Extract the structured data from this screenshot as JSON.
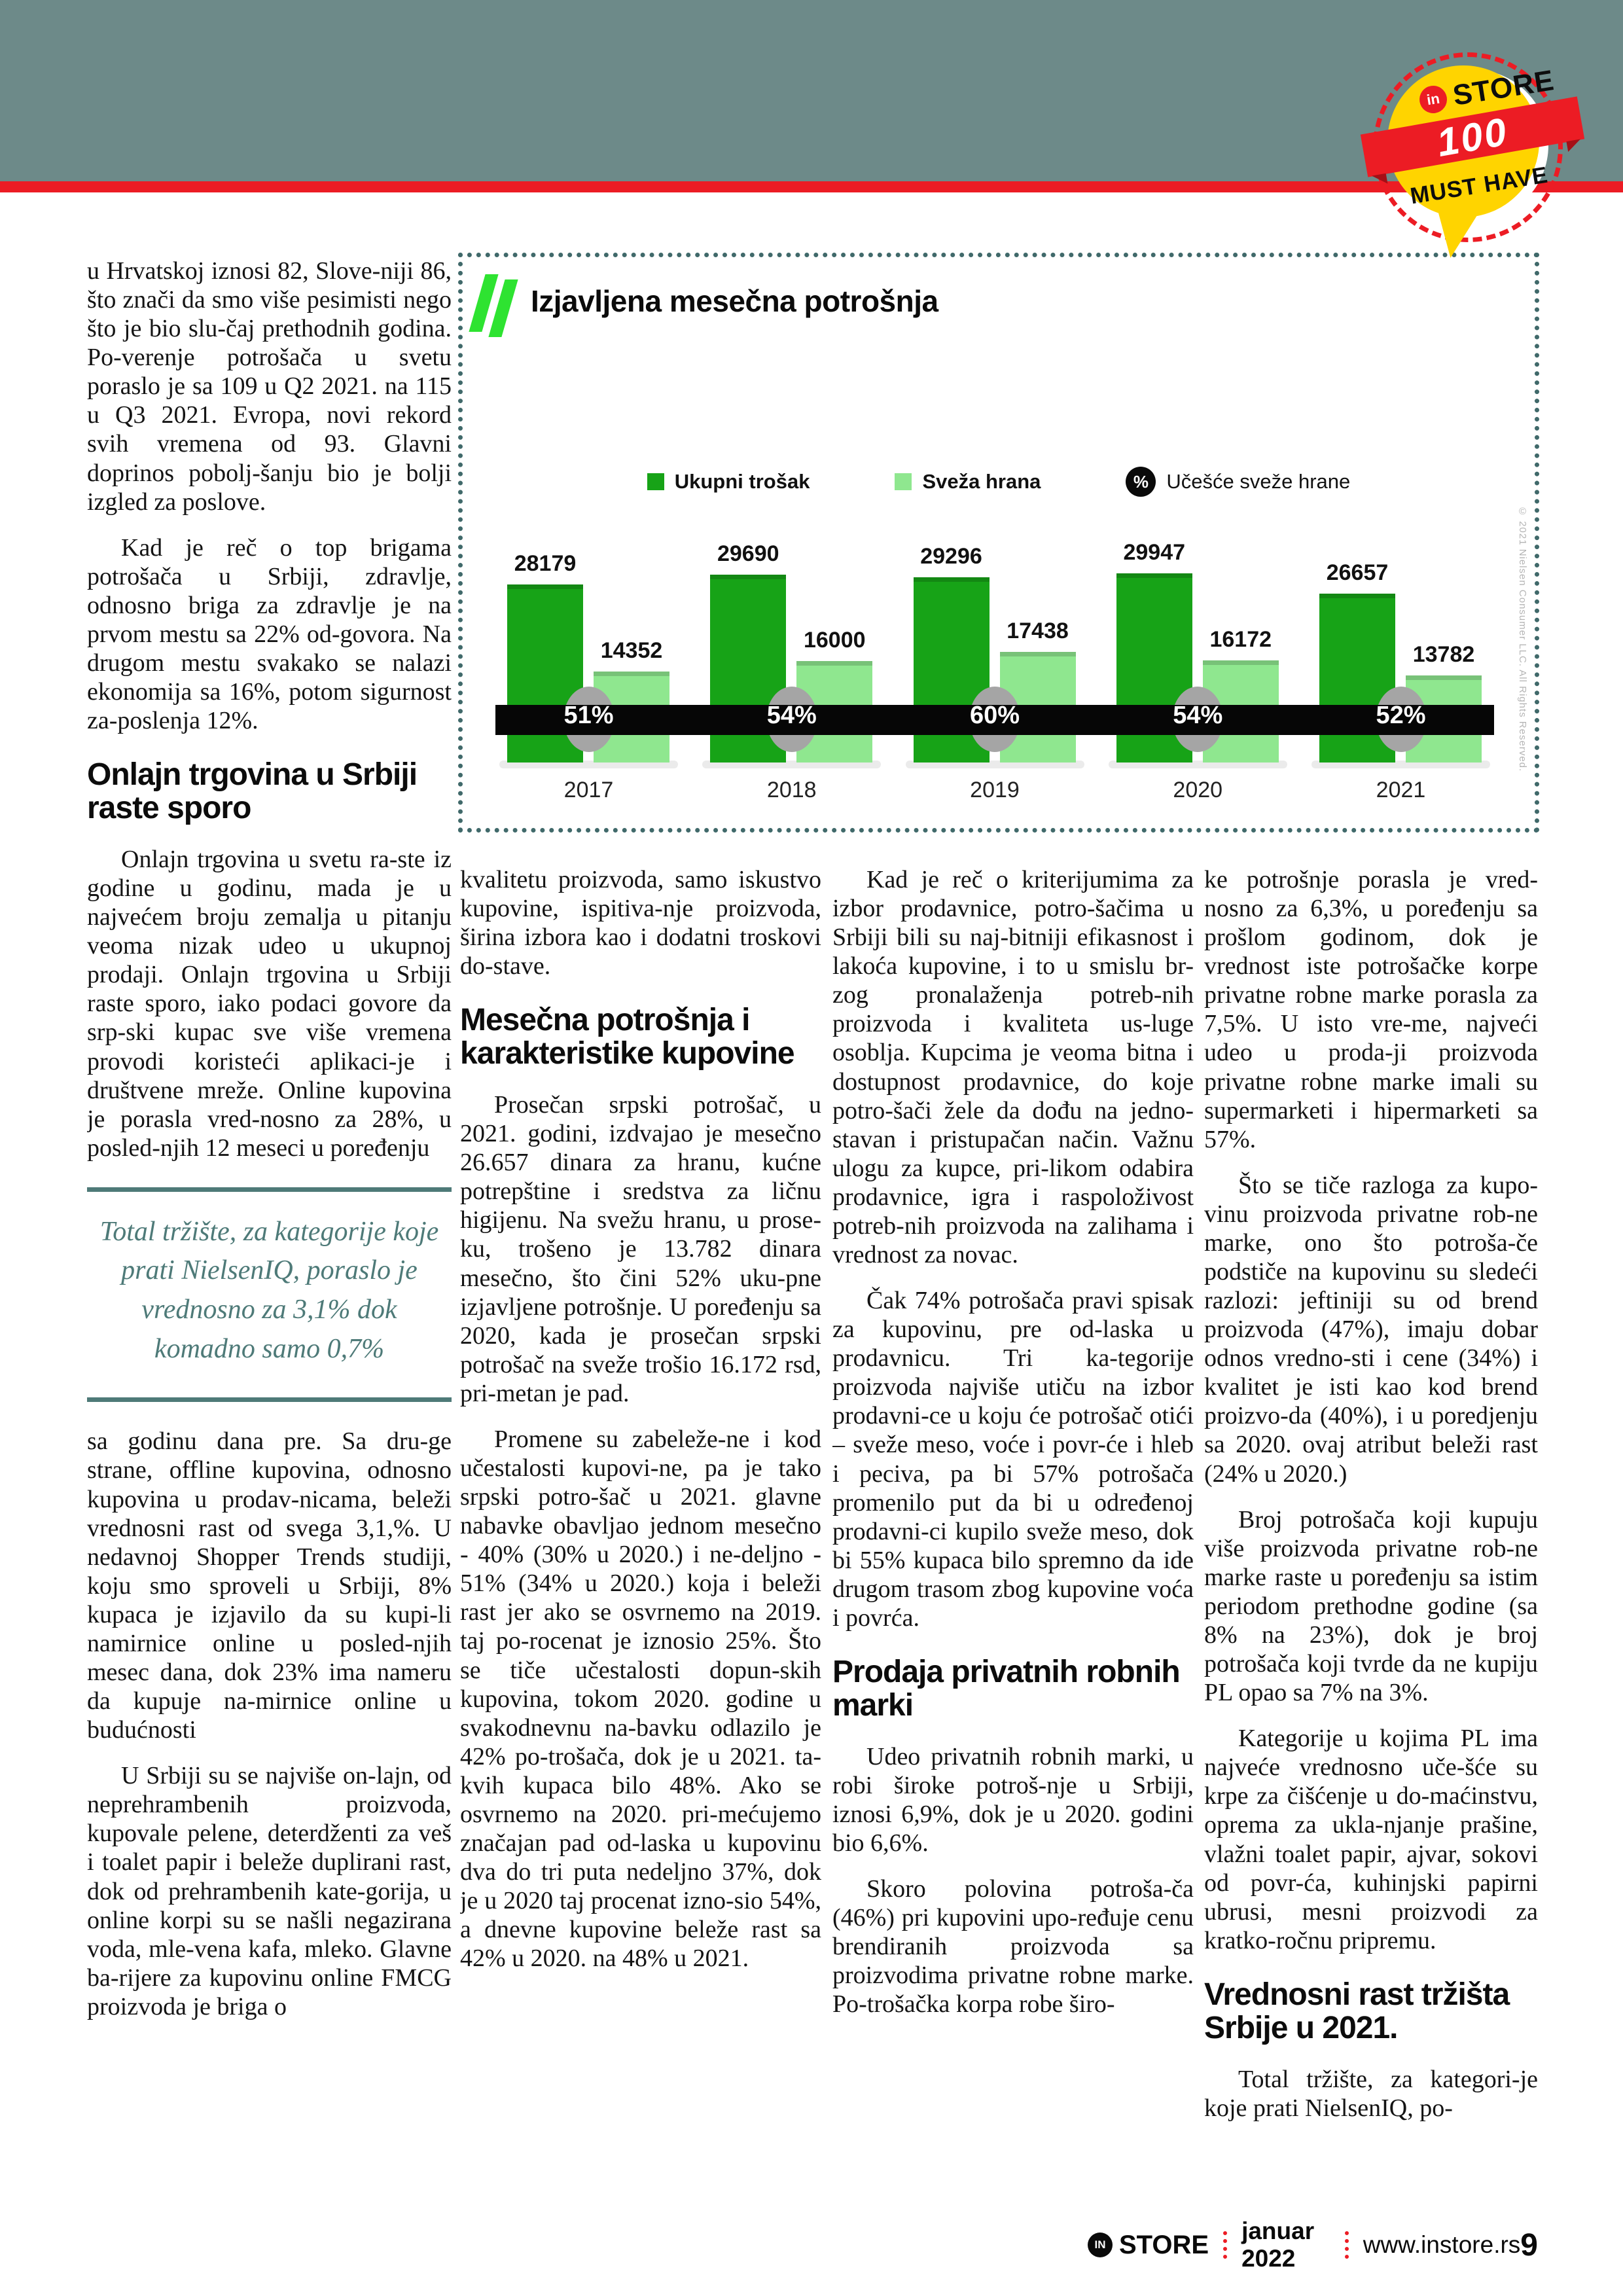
{
  "header": {
    "badge": {
      "in": "in",
      "store": "STORE",
      "number": "100",
      "tagline": "MUST HAVE"
    }
  },
  "left_column": {
    "p1": "u Hrvatskoj iznosi 82, Slove-niji 86, što znači da smo više pesimisti nego što je bio slu-čaj prethodnih godina. Po-verenje potrošača u svetu poraslo je sa 109 u Q2 2021. na 115 u Q3 2021. Evropa, novi rekord svih vremena od 93. Glavni doprinos pobolj-šanju bio je bolji izgled za poslove.",
    "p2": "Kad je reč o top brigama potrošača u Srbiji, zdravlje, odnosno briga za zdravlje je na prvom mestu sa 22% od-govora. Na drugom mestu svakako se nalazi ekonomija sa 16%, potom sigurnost za-poslenja 12%.",
    "heading": "Onlajn trgovina u Srbiji raste sporo",
    "p3": "Onlajn trgovina u svetu ra-ste iz godine u godinu, mada je u najvećem broju zemalja u pitanju veoma nizak udeo u ukupnoj prodaji. Onlajn trgovina u Srbiji raste sporo, iako podaci govore da srp-ski kupac sve više vremena provodi koristeći aplikaci-je i društvene mreže. Online kupovina je porasla vred-nosno za 28%, u posled-njih 12 meseci u poređenju",
    "quote": "Total tržište, za kategorije koje prati NielsenIQ, poraslo je vrednosno za 3,1% dok komadno samo 0,7%",
    "p4": "sa godinu dana pre. Sa dru-ge strane, offline kupovina, odnosno kupovina u prodav-nicama, beleži vrednosni rast od svega 3,1,%. U nedavnoj Shopper Trends studiji, koju smo sproveli u Srbiji, 8% kupaca je izjavilo da su kupi-li namirnice online u posled-njih mesec dana, dok 23% ima nameru da kupuje na-mirnice online u budućnosti",
    "p5": "U Srbiji su se najviše on-lajn, od neprehrambenih proizvoda, kupovale pelene, deterdženti za veš i toalet papir i beleže duplirani rast, dok od prehrambenih kate-gorija, u online korpi su se našli negazirana voda, mle-vena kafa, mleko. Glavne ba-rijere za kupovinu online FMCG proizvoda je briga o"
  },
  "chart_data": {
    "type": "bar",
    "title": "Izjavljena mesečna potrošnja",
    "categories": [
      "2017",
      "2018",
      "2019",
      "2020",
      "2021"
    ],
    "series": [
      {
        "name": "Ukupni trošak",
        "values": [
          28179,
          29690,
          29296,
          29947,
          26657
        ],
        "color": "#17a317"
      },
      {
        "name": "Sveža hrana",
        "values": [
          14352,
          16000,
          17438,
          16172,
          13782
        ],
        "color": "#8fe78f"
      },
      {
        "name": "Učešće sveže hrane",
        "role": "share-of-total-labels",
        "values": [
          "51%",
          "54%",
          "60%",
          "54%",
          "52%"
        ]
      }
    ],
    "legend_percent_symbol": "%",
    "legend_position": "top-center",
    "xlabel": "",
    "ylabel": "",
    "ylim": [
      0,
      30000
    ],
    "grid": false,
    "source_note": "© 2021 Nielsen Consumer LLC. All Rights Reserved."
  },
  "column2": {
    "p1": "kvalitetu proizvoda, samo iskustvo kupovine, ispitiva-nje proizvoda, širina izbora kao i  dodatni troskovi do-stave.",
    "heading": "Mesečna potrošnja i karakteristike kupovine",
    "p2": "Prosečan srpski potrošač, u 2021. godini, izdvajao je mesečno 26.657 dinara za hranu, kućne potrepštine i sredstva za ličnu higijenu. Na svežu hranu, u prose-ku, trošeno je 13.782 dinara mesečno, što čini 52% uku-pne izjavljene potrošnje. U poređenju sa 2020, kada je prosečan srpski potrošač na sveže trošio 16.172 rsd, pri-metan je pad.",
    "p3": "Promene su zabeleže-ne i kod učestalosti kupovi-ne, pa je tako srpski potro-šač u 2021. glavne nabavke obavljao jednom mesečno - 40% (30% u 2020.) i ne-deljno - 51% (34% u 2020.) koja i beleži rast jer ako se osvrnemo na 2019. taj po-rocenat je iznosio 25%. Što se tiče učestalosti dopun-skih kupovina, tokom 2020. godine u svakodnevnu na-bavku odlazilo je 42% po-trošača, dok je u 2021. ta-kvih kupaca bilo 48%. Ako se osvrnemo na 2020. pri-mećujemo značajan pad od-laska u kupovinu dva do tri puta nedeljno 37%, dok je u 2020 taj procenat izno-sio 54%, a dnevne kupovine beleže rast sa 42% u 2020. na 48% u 2021."
  },
  "column3": {
    "p1": "Kad je reč o kriterijumima za izbor prodavnice, potro-šačima u Srbiji bili su naj-bitniji efikasnost i lakoća kupovine, i to u smislu br-zog pronalaženja potreb-nih proizvoda i kvaliteta us-luge osoblja. Kupcima je veoma bitna i dostupnost prodavnice, do koje potro-šači žele da dođu na jedno-stavan i pristupačan način. Važnu ulogu za kupce, pri-likom odabira prodavnice, igra i raspoloživost potreb-nih proizvoda na zalihama i vrednost za novac.",
    "p2": "Čak 74% potrošača pravi spisak za kupovinu, pre od-laska u prodavnicu. Tri ka-tegorije proizvoda najviše utiču na izbor prodavni-ce u koju će potrošač otići – sveže meso, voće i povr-će i hleb i peciva, pa bi 57% potrošača promenilo put da bi u određenoj prodavni-ci kupilo sveže meso, dok bi 55% kupaca bilo spremno da ide drugom trasom zbog kupovine voća i povrća.",
    "heading": "Prodaja privatnih robnih marki",
    "p3": "Udeo privatnih robnih marki, u robi široke potroš-nje u Srbiji, iznosi 6,9%, dok je u 2020. godini bio 6,6%.",
    "p4": "Skoro polovina potroša-ča (46%) pri kupovini upo-ređuje cenu brendiranih proizvoda sa proizvodima privatne robne marke. Po-trošačka korpa robe širo-"
  },
  "column4": {
    "p1": "ke potrošnje porasla je vred-nosno za 6,3%, u poređenju sa prošlom godinom, dok je vrednost iste potrošačke korpe privatne robne marke porasla za 7,5%. U isto vre-me, najveći udeo u proda-ji proizvoda privatne robne marke imali su supermarketi i hipermarketi sa 57%.",
    "p2": "Što se tiče razloga za kupo-vinu proizvoda privatne rob-ne marke, ono što potroša-če podstiče na kupovinu su sledeći razlozi: jeftiniji su od brend proizvoda (47%), imaju dobar odnos vredno-sti i cene (34%) i kvalitet je isti kao kod brend proizvo-da (40%), i u poredjenju sa 2020. ovaj atribut beleži rast (24% u 2020.)",
    "p3": "Broj potrošača koji kupuju više proizvoda privatne rob-ne marke raste u poređenju sa istim periodom prethodne godine (sa 8% na 23%), dok je broj potrošača koji tvrde da ne kupiju PL opao sa 7% na 3%.",
    "p4": "Kategorije u kojima PL ima najveće vrednosno uče-šće su krpe za čišćenje u do-maćinstvu, oprema za ukla-njanje prašine, vlažni toalet papir, ajvar, sokovi od povr-ća, kuhinjski papirni ubrusi, mesni proizvodi za kratko-ročnu pripremu.",
    "heading": "Vrednosni rast tržišta Srbije u 2021.",
    "p5": "Total tržište, za kategori-je koje prati NielsenIQ, po-"
  },
  "footer": {
    "logo_in": "IN",
    "logo_store": "STORE",
    "date": "januar 2022",
    "site": "www.instore.rs",
    "page_number": "9"
  },
  "colors": {
    "accent_red": "#ec1c24",
    "header_sage": "#6d8a89",
    "quote_teal": "#4e7a78",
    "bar_total_green": "#17a317",
    "bar_fresh_green": "#8fe78f"
  }
}
